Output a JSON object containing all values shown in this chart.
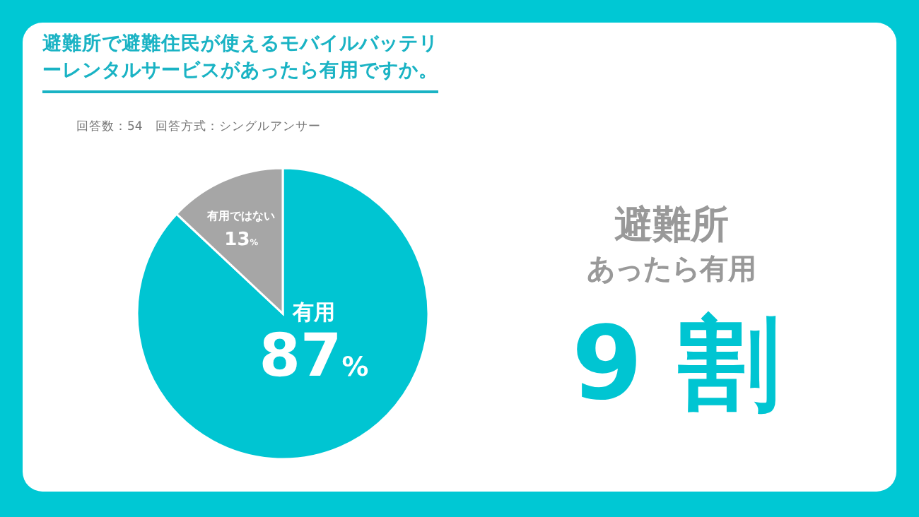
{
  "chart_data": {
    "type": "pie",
    "title": "避難所で避難住民が使えるモバイルバッテリーレンタルサービスがあったら有用ですか。",
    "subtitle": "回答数：54　回答方式：シングルアンサー",
    "categories": [
      "有用",
      "有用ではない"
    ],
    "values": [
      87,
      13
    ],
    "colors": [
      "#00c5d2",
      "#a6a6a6"
    ],
    "value_labels": [
      "87%",
      "13%"
    ],
    "annotations": [
      "避難所",
      "あったら有用",
      "9 割"
    ]
  }
}
